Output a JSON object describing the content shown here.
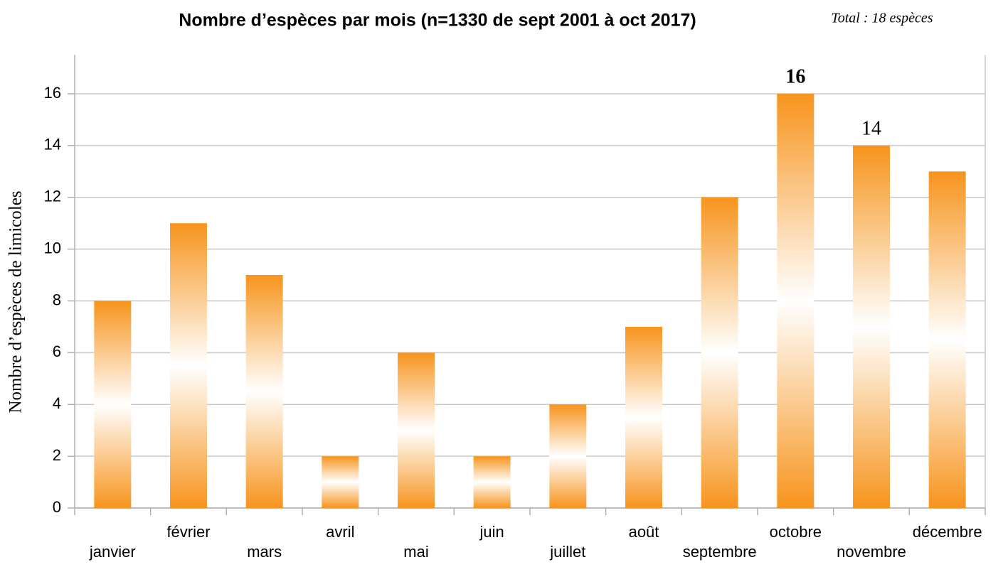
{
  "chart_data": {
    "type": "bar",
    "title": "Nombre d’espèces par mois (n=1330 de sept 2001 à oct 2017)",
    "subtitle": "Total : 18 espèces",
    "y_label": "Nombre d’espèces de limicoles",
    "categories": [
      "janvier",
      "février",
      "mars",
      "avril",
      "mai",
      "juin",
      "juillet",
      "août",
      "septembre",
      "octobre",
      "novembre",
      "décembre"
    ],
    "values": [
      8,
      11,
      9,
      2,
      6,
      2,
      4,
      7,
      12,
      16,
      14,
      13
    ],
    "value_labels": [
      null,
      null,
      null,
      null,
      null,
      null,
      null,
      null,
      null,
      "16",
      "14",
      null
    ],
    "color": "#f7941d",
    "ylim": [
      0,
      17.5
    ],
    "yticks": [
      0,
      2,
      4,
      6,
      8,
      10,
      12,
      14,
      16
    ],
    "grid": true
  }
}
